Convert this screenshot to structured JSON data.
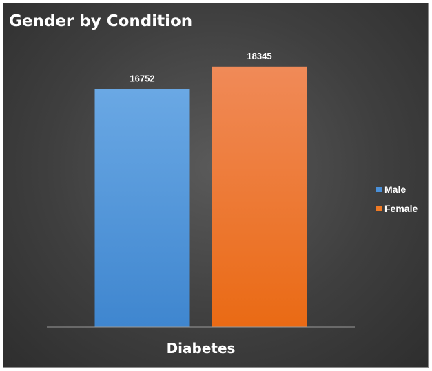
{
  "chart_data": {
    "type": "bar",
    "title": "Gender by Condition",
    "categories": [
      "Diabetes"
    ],
    "series": [
      {
        "name": "Male",
        "values": [
          16752
        ],
        "color": "#4a90d9"
      },
      {
        "name": "Female",
        "values": [
          18345
        ],
        "color": "#f07a24"
      }
    ],
    "ylim": [
      0,
      19500
    ],
    "grid": false,
    "legend": "right",
    "data_labels": true
  }
}
